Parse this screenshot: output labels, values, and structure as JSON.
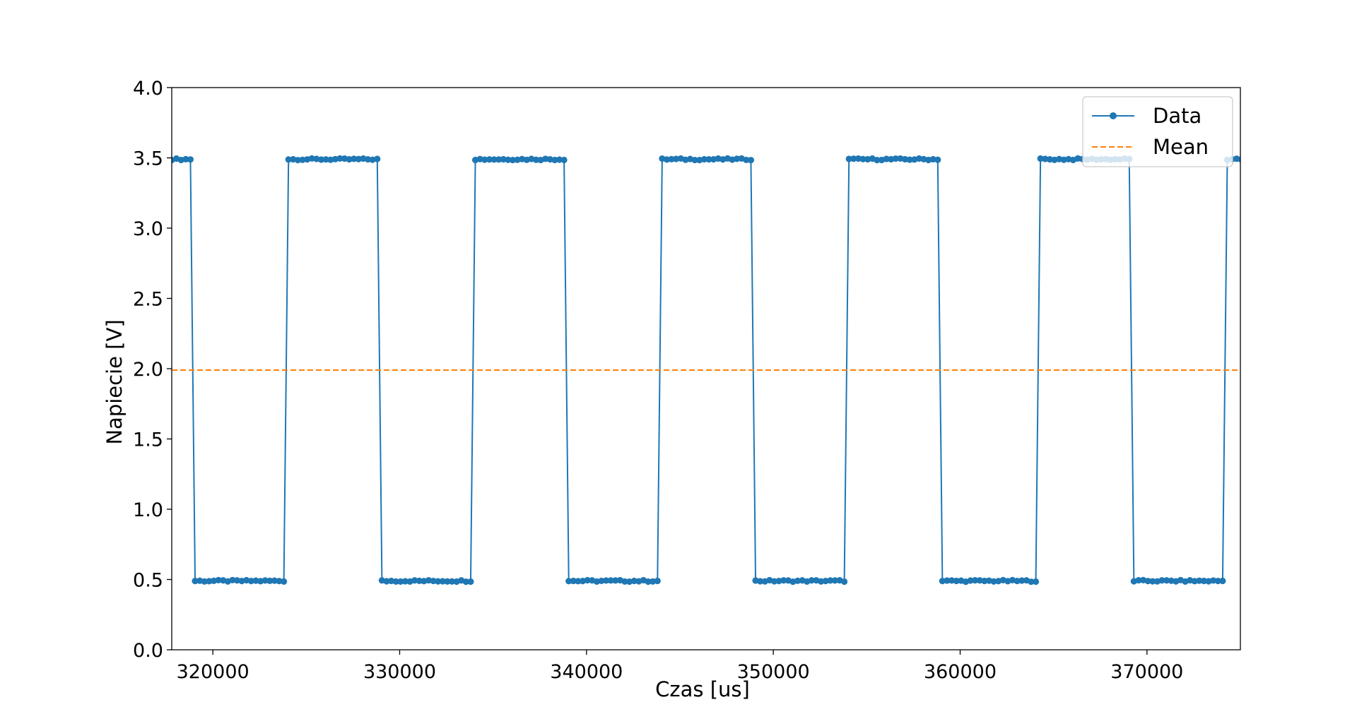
{
  "chart_data": {
    "type": "line",
    "title": "",
    "xlabel": "Czas [us]",
    "ylabel": "Napiecie [V]",
    "xlim": [
      317800,
      375000
    ],
    "ylim": [
      0.0,
      4.0
    ],
    "xticks": [
      320000,
      330000,
      340000,
      350000,
      360000,
      370000
    ],
    "xtick_labels": [
      "320000",
      "330000",
      "340000",
      "350000",
      "360000",
      "370000"
    ],
    "yticks": [
      0.0,
      0.5,
      1.0,
      1.5,
      2.0,
      2.5,
      3.0,
      3.5,
      4.0
    ],
    "ytick_labels": [
      "0.0",
      "0.5",
      "1.0",
      "1.5",
      "2.0",
      "2.5",
      "3.0",
      "3.5",
      "4.0"
    ],
    "grid": false,
    "legend_position": "top-right",
    "signal": {
      "high": 3.49,
      "low": 0.49,
      "sample_step_us": 250,
      "falling_edges": [
        318900,
        328900,
        338900,
        348900,
        359000,
        369100
      ],
      "rising_edges": [
        324000,
        334000,
        344000,
        354000,
        364100,
        374100
      ]
    },
    "series": [
      {
        "name": "Data",
        "style": "line-marker",
        "color": "#1f77b4"
      },
      {
        "name": "Mean",
        "style": "dashed",
        "color": "#ff7f0e",
        "value": 1.99
      }
    ]
  }
}
